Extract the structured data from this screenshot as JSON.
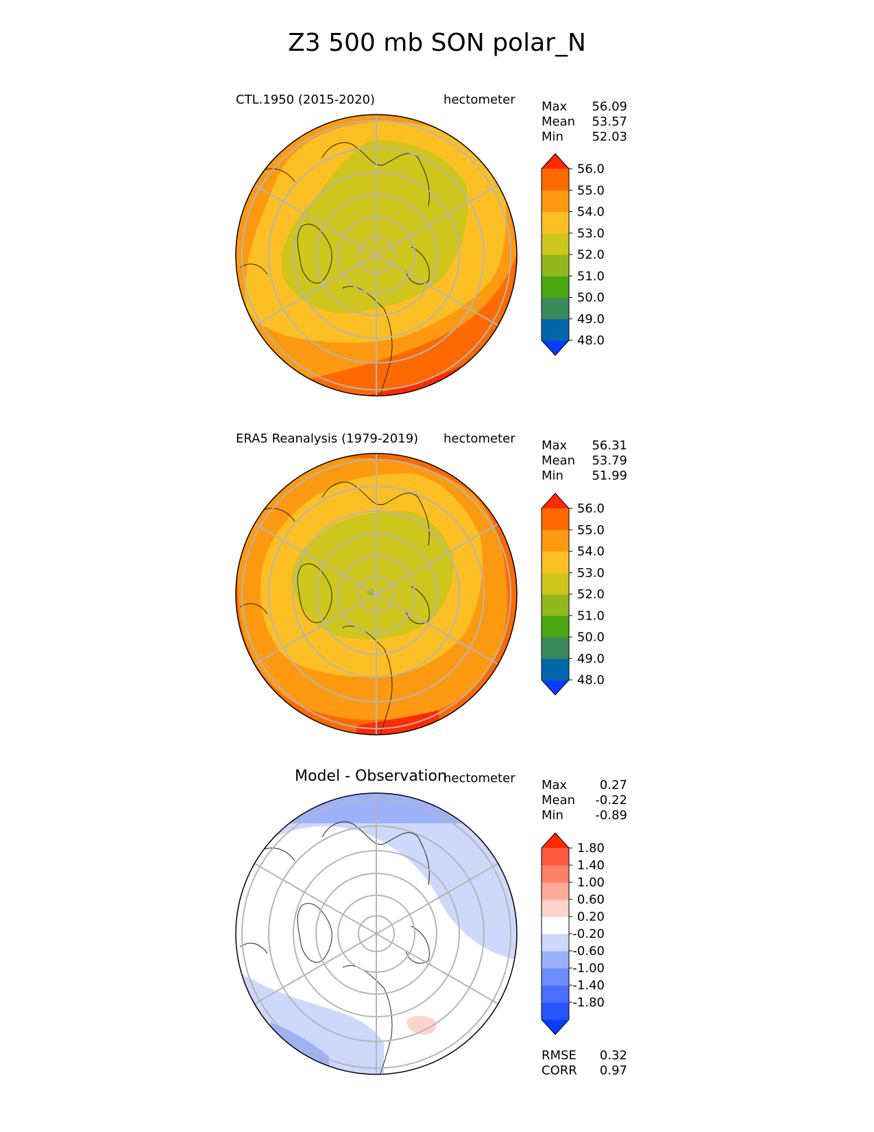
{
  "figure_title": "Z3 500 mb SON polar_N",
  "chart_data": [
    {
      "type": "heatmap",
      "projection": "north polar stereographic",
      "title": "CTL.1950 (2015-2020)",
      "units": "hectometer",
      "stats": {
        "max": {
          "label": "Max",
          "value": "56.09"
        },
        "mean": {
          "label": "Mean",
          "value": "53.57"
        },
        "min": {
          "label": "Min",
          "value": "52.03"
        }
      },
      "colorbar": {
        "ticks": [
          "56.0",
          "55.0",
          "54.0",
          "53.0",
          "52.0",
          "51.0",
          "50.0",
          "49.0",
          "48.0"
        ],
        "colors": [
          "#0a3cff",
          "#0068a8",
          "#3b8a5c",
          "#4aa812",
          "#91b81c",
          "#cec51d",
          "#fbbf24",
          "#fd9a12",
          "#ff6a00",
          "#ff2a00"
        ]
      }
    },
    {
      "type": "heatmap",
      "projection": "north polar stereographic",
      "title": "ERA5 Reanalysis (1979-2019)",
      "units": "hectometer",
      "stats": {
        "max": {
          "label": "Max",
          "value": "56.31"
        },
        "mean": {
          "label": "Mean",
          "value": "53.79"
        },
        "min": {
          "label": "Min",
          "value": "51.99"
        }
      },
      "colorbar": {
        "ticks": [
          "56.0",
          "55.0",
          "54.0",
          "53.0",
          "52.0",
          "51.0",
          "50.0",
          "49.0",
          "48.0"
        ],
        "colors": [
          "#0a3cff",
          "#0068a8",
          "#3b8a5c",
          "#4aa812",
          "#91b81c",
          "#cec51d",
          "#fbbf24",
          "#fd9a12",
          "#ff6a00",
          "#ff2a00"
        ]
      }
    },
    {
      "type": "heatmap",
      "projection": "north polar stereographic",
      "title": "Model - Observation",
      "units": "hectometer",
      "stats": {
        "max": {
          "label": "Max",
          "value": "0.27"
        },
        "mean": {
          "label": "Mean",
          "value": "-0.22"
        },
        "min": {
          "label": "Min",
          "value": "-0.89"
        }
      },
      "metrics": {
        "rmse": {
          "label": "RMSE",
          "value": "0.32"
        },
        "corr": {
          "label": "CORR",
          "value": "0.97"
        }
      },
      "colorbar": {
        "ticks": [
          "1.80",
          "1.40",
          "1.00",
          "0.60",
          "0.20",
          "-0.20",
          "-0.60",
          "-1.00",
          "-1.40",
          "-1.80"
        ],
        "colors": [
          "#0a3cff",
          "#2756ff",
          "#4a6eff",
          "#6d8cff",
          "#9db1fb",
          "#cdd8fb",
          "#ffffff",
          "#fdd3cc",
          "#fdaa98",
          "#ff8066",
          "#ff5a40",
          "#ff2a00"
        ]
      }
    }
  ]
}
